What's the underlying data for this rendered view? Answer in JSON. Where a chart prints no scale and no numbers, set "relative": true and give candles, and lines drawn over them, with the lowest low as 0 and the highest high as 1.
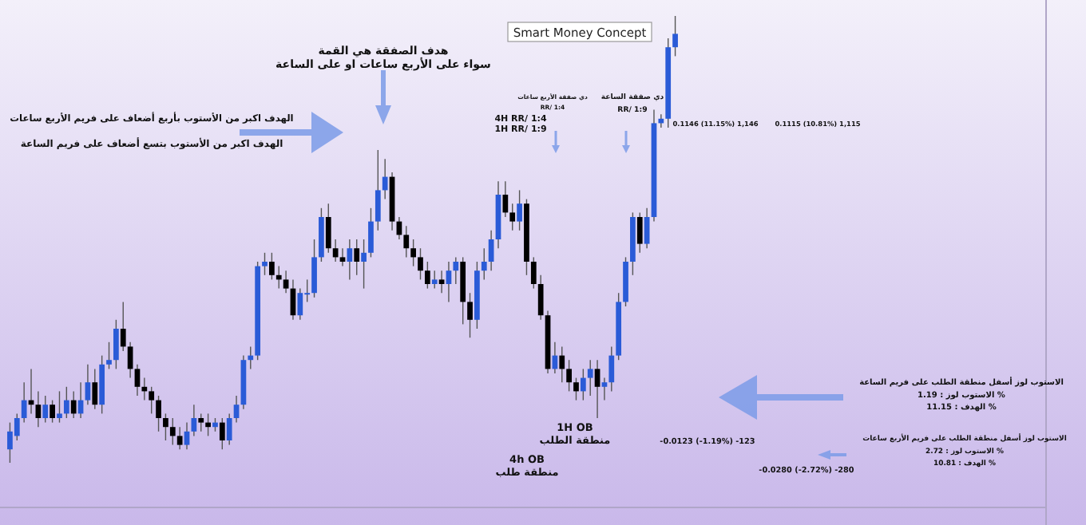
{
  "chart_data": {
    "type": "candlestick",
    "relative": true,
    "subtitle": "Smart Money Concept",
    "categories": [
      null,
      null,
      null,
      null,
      null,
      null,
      null,
      null,
      null,
      null,
      null,
      null,
      null,
      null,
      null,
      null,
      null,
      null,
      null,
      null,
      null,
      null,
      null,
      null,
      null,
      null,
      null,
      null,
      null,
      null,
      null,
      null,
      null,
      null,
      null,
      null,
      null,
      null,
      null,
      null,
      null,
      null,
      null,
      null,
      null,
      null,
      null,
      null,
      null,
      null,
      null,
      null,
      null,
      null,
      null,
      null,
      null,
      null,
      null,
      null,
      null,
      null,
      null,
      null,
      null,
      null,
      null,
      null,
      null,
      null,
      null,
      null,
      null,
      null,
      null,
      null,
      null,
      null,
      null,
      null,
      null,
      null,
      null,
      null,
      null,
      null,
      null,
      null,
      null,
      null,
      null,
      null,
      null,
      null,
      null
    ],
    "ohlc": [
      [
        0.03,
        0.09,
        0,
        0.07
      ],
      [
        0.06,
        0.11,
        0.05,
        0.1
      ],
      [
        0.1,
        0.18,
        0.09,
        0.14
      ],
      [
        0.14,
        0.21,
        0.11,
        0.13
      ],
      [
        0.13,
        0.16,
        0.08,
        0.1
      ],
      [
        0.1,
        0.15,
        0.09,
        0.13
      ],
      [
        0.13,
        0.14,
        0.09,
        0.1
      ],
      [
        0.1,
        0.16,
        0.09,
        0.11
      ],
      [
        0.11,
        0.17,
        0.1,
        0.14
      ],
      [
        0.14,
        0.16,
        0.1,
        0.11
      ],
      [
        0.11,
        0.18,
        0.1,
        0.14
      ],
      [
        0.14,
        0.22,
        0.13,
        0.18
      ],
      [
        0.18,
        0.21,
        0.12,
        0.13
      ],
      [
        0.13,
        0.24,
        0.11,
        0.22
      ],
      [
        0.22,
        0.27,
        0.21,
        0.23
      ],
      [
        0.23,
        0.32,
        0.21,
        0.3
      ],
      [
        0.3,
        0.36,
        0.25,
        0.26
      ],
      [
        0.26,
        0.27,
        0.19,
        0.21
      ],
      [
        0.21,
        0.22,
        0.15,
        0.17
      ],
      [
        0.17,
        0.19,
        0.14,
        0.16
      ],
      [
        0.16,
        0.17,
        0.11,
        0.14
      ],
      [
        0.14,
        0.15,
        0.07,
        0.1
      ],
      [
        0.1,
        0.11,
        0.05,
        0.08
      ],
      [
        0.08,
        0.1,
        0.04,
        0.06
      ],
      [
        0.06,
        0.08,
        0.03,
        0.04
      ],
      [
        0.04,
        0.09,
        0.03,
        0.07
      ],
      [
        0.07,
        0.13,
        0.06,
        0.1
      ],
      [
        0.1,
        0.11,
        0.07,
        0.09
      ],
      [
        0.09,
        0.11,
        0.06,
        0.08
      ],
      [
        0.08,
        0.1,
        0.07,
        0.09
      ],
      [
        0.09,
        0.1,
        0.03,
        0.05
      ],
      [
        0.05,
        0.11,
        0.04,
        0.1
      ],
      [
        0.1,
        0.15,
        0.09,
        0.13
      ],
      [
        0.13,
        0.24,
        0.12,
        0.23
      ],
      [
        0.23,
        0.26,
        0.21,
        0.24
      ],
      [
        0.24,
        0.45,
        0.23,
        0.44
      ],
      [
        0.44,
        0.47,
        0.42,
        0.45
      ],
      [
        0.45,
        0.47,
        0.41,
        0.42
      ],
      [
        0.42,
        0.44,
        0.39,
        0.41
      ],
      [
        0.41,
        0.43,
        0.38,
        0.39
      ],
      [
        0.39,
        0.41,
        0.32,
        0.33
      ],
      [
        0.33,
        0.39,
        0.32,
        0.38
      ],
      [
        0.38,
        0.41,
        0.36,
        0.38
      ],
      [
        0.38,
        0.5,
        0.37,
        0.46
      ],
      [
        0.46,
        0.57,
        0.45,
        0.55
      ],
      [
        0.55,
        0.58,
        0.47,
        0.48
      ],
      [
        0.48,
        0.5,
        0.45,
        0.46
      ],
      [
        0.46,
        0.48,
        0.44,
        0.45
      ],
      [
        0.45,
        0.5,
        0.41,
        0.48
      ],
      [
        0.48,
        0.5,
        0.42,
        0.45
      ],
      [
        0.45,
        0.5,
        0.39,
        0.47
      ],
      [
        0.47,
        0.57,
        0.46,
        0.54
      ],
      [
        0.54,
        0.7,
        0.52,
        0.61
      ],
      [
        0.61,
        0.68,
        0.59,
        0.64
      ],
      [
        0.64,
        0.65,
        0.52,
        0.54
      ],
      [
        0.54,
        0.55,
        0.5,
        0.51
      ],
      [
        0.51,
        0.53,
        0.46,
        0.48
      ],
      [
        0.48,
        0.5,
        0.44,
        0.46
      ],
      [
        0.46,
        0.48,
        0.41,
        0.43
      ],
      [
        0.43,
        0.45,
        0.39,
        0.4
      ],
      [
        0.4,
        0.43,
        0.39,
        0.41
      ],
      [
        0.41,
        0.43,
        0.38,
        0.4
      ],
      [
        0.4,
        0.45,
        0.36,
        0.43
      ],
      [
        0.43,
        0.46,
        0.4,
        0.45
      ],
      [
        0.45,
        0.46,
        0.31,
        0.36
      ],
      [
        0.36,
        0.38,
        0.28,
        0.32
      ],
      [
        0.32,
        0.45,
        0.3,
        0.43
      ],
      [
        0.43,
        0.48,
        0.41,
        0.45
      ],
      [
        0.45,
        0.52,
        0.43,
        0.5
      ],
      [
        0.5,
        0.63,
        0.48,
        0.6
      ],
      [
        0.6,
        0.63,
        0.55,
        0.56
      ],
      [
        0.56,
        0.58,
        0.52,
        0.54
      ],
      [
        0.54,
        0.61,
        0.52,
        0.58
      ],
      [
        0.58,
        0.59,
        0.42,
        0.45
      ],
      [
        0.45,
        0.46,
        0.39,
        0.4
      ],
      [
        0.4,
        0.42,
        0.32,
        0.33
      ],
      [
        0.33,
        0.34,
        0.2,
        0.21
      ],
      [
        0.21,
        0.27,
        0.2,
        0.24
      ],
      [
        0.24,
        0.26,
        0.18,
        0.21
      ],
      [
        0.21,
        0.23,
        0.16,
        0.18
      ],
      [
        0.18,
        0.19,
        0.14,
        0.16
      ],
      [
        0.16,
        0.21,
        0.14,
        0.19
      ],
      [
        0.19,
        0.23,
        0.15,
        0.21
      ],
      [
        0.21,
        0.23,
        0.1,
        0.17
      ],
      [
        0.17,
        0.19,
        0.14,
        0.18
      ],
      [
        0.18,
        0.26,
        0.16,
        0.24
      ],
      [
        0.24,
        0.38,
        0.23,
        0.36
      ],
      [
        0.36,
        0.46,
        0.35,
        0.45
      ],
      [
        0.45,
        0.56,
        0.42,
        0.55
      ],
      [
        0.55,
        0.56,
        0.47,
        0.49
      ],
      [
        0.49,
        0.57,
        0.48,
        0.55
      ],
      [
        0.55,
        0.79,
        0.54,
        0.76
      ],
      [
        0.76,
        0.78,
        0.75,
        0.77
      ],
      [
        0.77,
        0.95,
        0.75,
        0.93
      ],
      [
        0.93,
        1,
        0.91,
        0.96
      ]
    ],
    "colors": [
      "#2a5bd7",
      "#2a5bd7",
      "#2a5bd7",
      "#000000",
      "#000000",
      "#2a5bd7",
      "#000000",
      "#2a5bd7",
      "#2a5bd7",
      "#000000",
      "#2a5bd7",
      "#2a5bd7",
      "#000000",
      "#2a5bd7",
      "#2a5bd7",
      "#2a5bd7",
      "#000000",
      "#000000",
      "#000000",
      "#000000",
      "#000000",
      "#000000",
      "#000000",
      "#000000",
      "#000000",
      "#2a5bd7",
      "#2a5bd7",
      "#000000",
      "#000000",
      "#2a5bd7",
      "#000000",
      "#2a5bd7",
      "#2a5bd7",
      "#2a5bd7",
      "#2a5bd7",
      "#2a5bd7",
      "#2a5bd7",
      "#000000",
      "#000000",
      "#000000",
      "#000000",
      "#2a5bd7",
      "#2a5bd7",
      "#2a5bd7",
      "#2a5bd7",
      "#000000",
      "#000000",
      "#000000",
      "#2a5bd7",
      "#000000",
      "#2a5bd7",
      "#2a5bd7",
      "#2a5bd7",
      "#2a5bd7",
      "#000000",
      "#000000",
      "#000000",
      "#000000",
      "#000000",
      "#000000",
      "#2a5bd7",
      "#000000",
      "#2a5bd7",
      "#2a5bd7",
      "#000000",
      "#000000",
      "#2a5bd7",
      "#2a5bd7",
      "#2a5bd7",
      "#2a5bd7",
      "#000000",
      "#000000",
      "#2a5bd7",
      "#000000",
      "#000000",
      "#000000",
      "#000000",
      "#2a5bd7",
      "#000000",
      "#000000",
      "#000000",
      "#2a5bd7",
      "#2a5bd7",
      "#000000",
      "#2a5bd7",
      "#2a5bd7",
      "#2a5bd7",
      "#2a5bd7",
      "#2a5bd7",
      "#000000",
      "#2a5bd7",
      "#2a5bd7",
      "#2a5bd7",
      "#2a5bd7",
      "#2a5bd7"
    ],
    "annotations": [
      "هدف الصفقة هي القمة\nسواء على الأربع ساعات او على الساعة",
      "الهدف اكبر من الأستوب بأربع أضعاف على فريم الأربع ساعات",
      "الهدف اكبر من الأستوب بتسع أضعاف على فريم الساعة",
      "4H RR/ 1:4\n1H RR/ 1:9",
      "دي صفقة الأربع ساعات\nRR/ 1:4",
      "دي صفقة الساعة\nRR/ 1:9",
      "0.1146 (11.15%) 1,146",
      "0.1115 (10.81%) 1,115",
      "1H OB\nمنطقة الطلب",
      "4h OB\nمنطقة طلب",
      "-0.0123 (-1.19%) -123",
      "-0.0280 (-2.72%) -280",
      "الاستوب لوز أسفل منطقة الطلب على فريم الساعة\nالاستوب لوز : 1.19 %\nالهدف : 11.15 %",
      "الاستوب لوز أسفل منطقة الطلب على فريم الأربع ساعات\nالاستوب لوز : 2.72 %\nالهدف : 10.81 %"
    ]
  }
}
